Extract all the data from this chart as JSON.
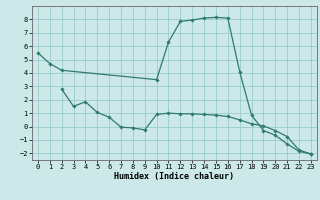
{
  "xlabel": "Humidex (Indice chaleur)",
  "bg_color": "#cce8e8",
  "grid_color": "#99cccc",
  "line_color": "#2e7b6e",
  "line1": {
    "x": [
      0,
      1,
      2,
      10,
      11,
      12,
      13,
      14,
      15,
      16,
      17,
      18,
      19,
      20,
      21,
      22,
      23
    ],
    "y": [
      5.5,
      4.7,
      4.2,
      3.5,
      6.3,
      7.85,
      7.95,
      8.1,
      8.15,
      8.1,
      4.1,
      0.85,
      -0.3,
      -0.65,
      -1.3,
      -1.85,
      -2.05
    ]
  },
  "line2": {
    "x": [
      2,
      3,
      4,
      5,
      6,
      7,
      8,
      9,
      10,
      11,
      12,
      13,
      14,
      15,
      16,
      17,
      18,
      19,
      20,
      21,
      22,
      23
    ],
    "y": [
      2.8,
      1.5,
      1.85,
      1.05,
      0.7,
      -0.05,
      -0.1,
      -0.25,
      0.9,
      1.0,
      0.95,
      0.95,
      0.9,
      0.85,
      0.75,
      0.5,
      0.2,
      0.05,
      -0.3,
      -0.75,
      -1.75,
      -2.05
    ]
  },
  "ylim": [
    -2.5,
    9.0
  ],
  "xlim": [
    -0.5,
    23.5
  ],
  "yticks": [
    -2,
    -1,
    0,
    1,
    2,
    3,
    4,
    5,
    6,
    7,
    8
  ],
  "xticks": [
    0,
    1,
    2,
    3,
    4,
    5,
    6,
    7,
    8,
    9,
    10,
    11,
    12,
    13,
    14,
    15,
    16,
    17,
    18,
    19,
    20,
    21,
    22,
    23
  ]
}
